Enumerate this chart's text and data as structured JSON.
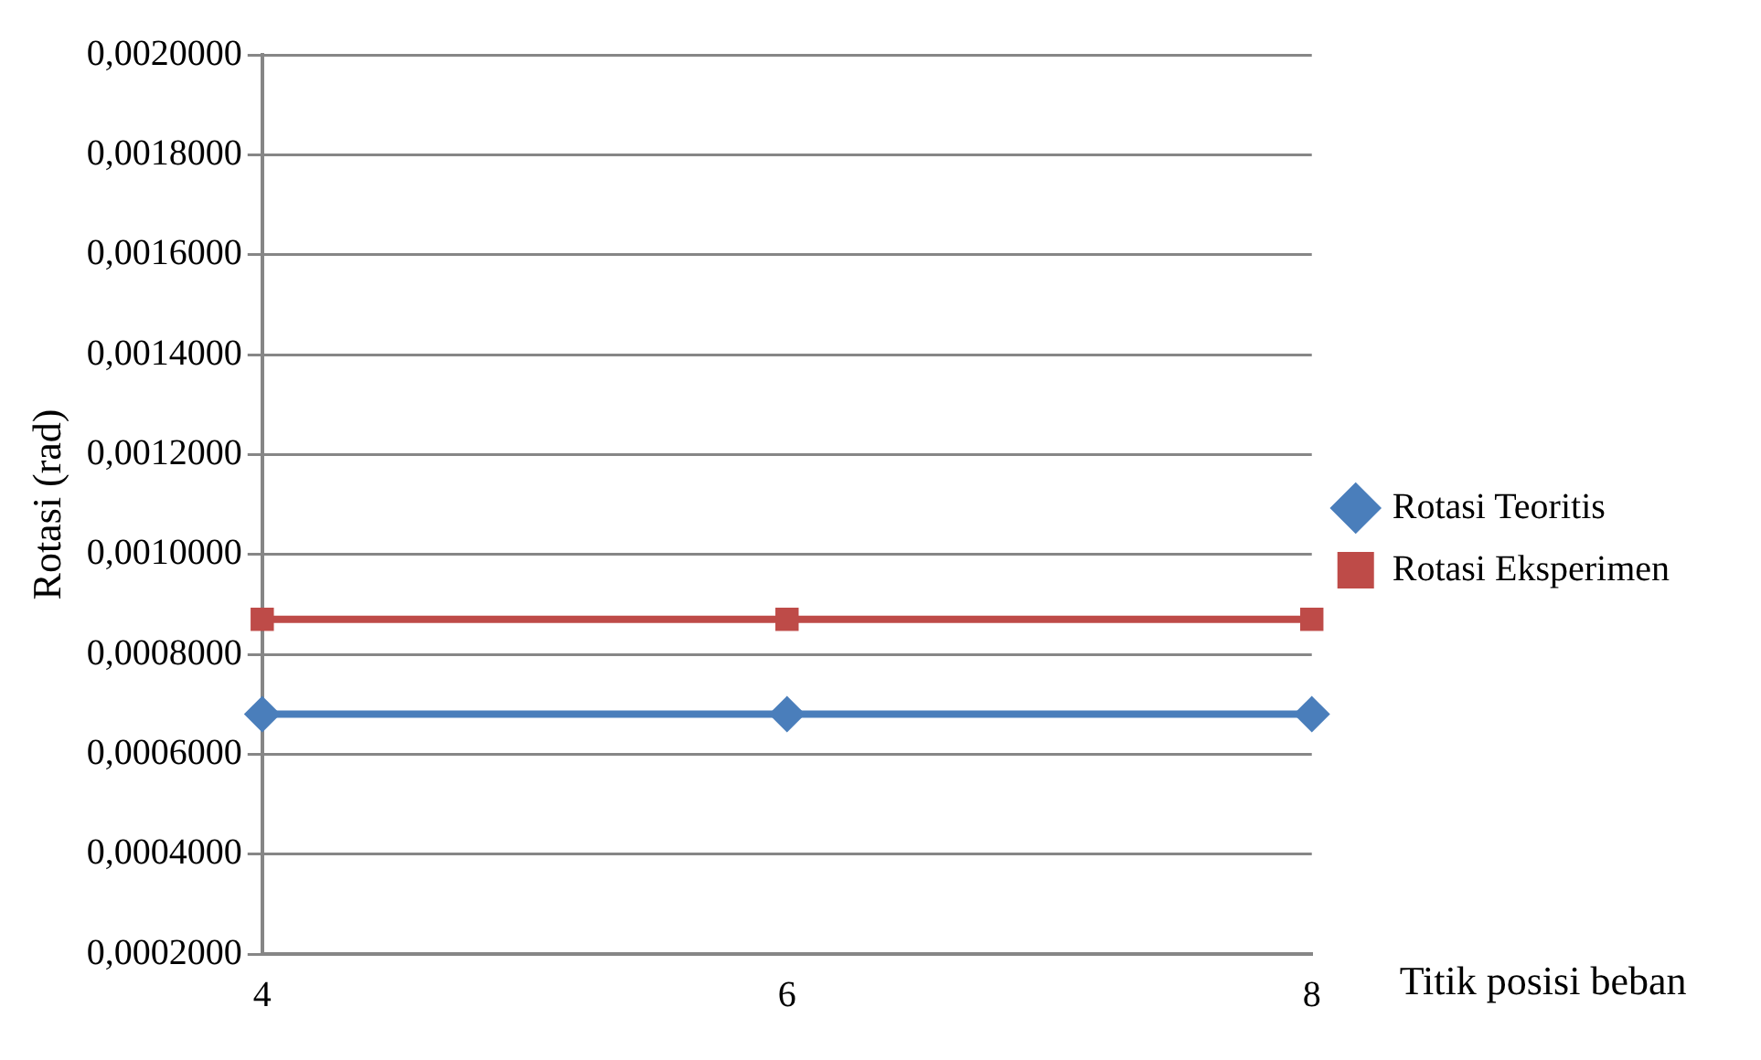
{
  "chart_data": {
    "type": "line",
    "ylabel": "Rotasi (rad)",
    "xlabel": "Titik posisi beban",
    "x": [
      4,
      6,
      8
    ],
    "xlim": [
      4,
      8
    ],
    "xticks": [
      4,
      6,
      8
    ],
    "ylim": [
      0.0002,
      0.002
    ],
    "yticks": [
      {
        "value": 0.0002,
        "label": "0,0002000"
      },
      {
        "value": 0.0004,
        "label": "0,0004000"
      },
      {
        "value": 0.0006,
        "label": "0,0006000"
      },
      {
        "value": 0.0008,
        "label": "0,0008000"
      },
      {
        "value": 0.001,
        "label": "0,0010000"
      },
      {
        "value": 0.0012,
        "label": "0,0012000"
      },
      {
        "value": 0.0014,
        "label": "0,0014000"
      },
      {
        "value": 0.0016,
        "label": "0,0016000"
      },
      {
        "value": 0.0018,
        "label": "0,0018000"
      },
      {
        "value": 0.002,
        "label": "0,0020000"
      }
    ],
    "series": [
      {
        "name": "Rotasi Teoritis",
        "color": "#4a7ebb",
        "marker": "diamond",
        "values": [
          0.00068,
          0.00068,
          0.00068
        ]
      },
      {
        "name": "Rotasi Eksperimen",
        "color": "#be4b48",
        "marker": "square",
        "values": [
          0.00087,
          0.00087,
          0.00087
        ]
      }
    ],
    "grid": "y",
    "legend": "right",
    "line_style": "solid"
  }
}
